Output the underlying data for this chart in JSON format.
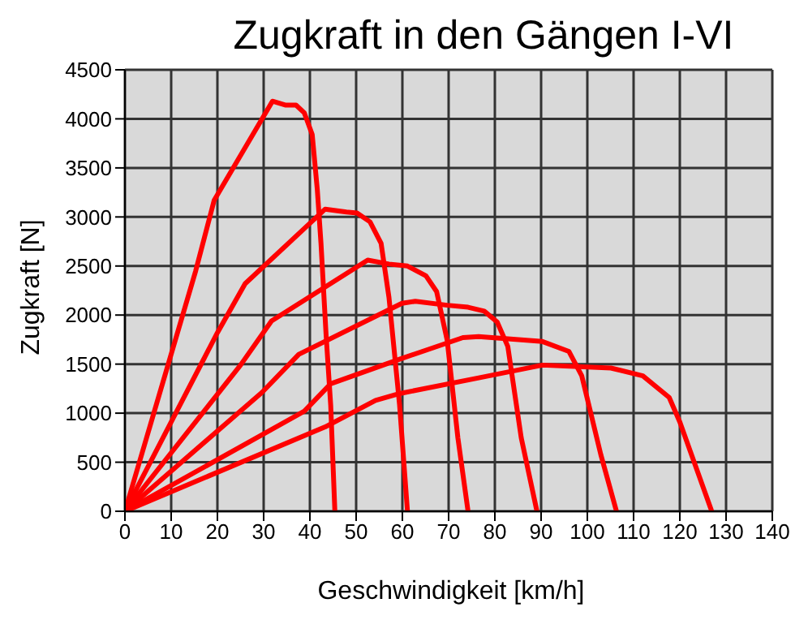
{
  "chart_data": {
    "type": "line",
    "title": "Zugkraft in den Gängen I-VI",
    "xlabel": "Geschwindigkeit [km/h]",
    "ylabel": "Zugkraft [N]",
    "xlim": [
      0,
      140
    ],
    "xticks": [
      0,
      10,
      20,
      30,
      40,
      50,
      60,
      70,
      80,
      90,
      100,
      110,
      120,
      130,
      140
    ],
    "ylim": [
      0,
      4500
    ],
    "yticks": [
      0,
      500,
      1000,
      1500,
      2000,
      2500,
      3000,
      3500,
      4000,
      4500
    ],
    "grid": true,
    "marker": "none",
    "line_style": "solid",
    "series": [
      {
        "color": "#ff0000",
        "x": [
          0,
          15.3,
          19.3,
          31.9,
          34.8,
          37,
          38.8,
          40.5,
          41.6,
          42.4,
          43.5,
          44.5,
          45.4
        ],
        "values": [
          0,
          2450,
          3170,
          4180,
          4140,
          4140,
          4060,
          3840,
          3280,
          2730,
          1800,
          1080,
          0
        ]
      },
      {
        "color": "#ff0000",
        "x": [
          0,
          20,
          26,
          43.3,
          47.9,
          50.2,
          53,
          55.4,
          57.1,
          59.4,
          61.1
        ],
        "values": [
          0,
          1820,
          2320,
          3080,
          3050,
          3040,
          2950,
          2730,
          2180,
          1080,
          0
        ]
      },
      {
        "color": "#ff0000",
        "x": [
          0,
          25,
          31.7,
          52.5,
          57.1,
          61.1,
          65.1,
          67.4,
          69.7,
          72,
          74.2
        ],
        "values": [
          0,
          1490,
          1940,
          2560,
          2520,
          2500,
          2400,
          2240,
          1740,
          750,
          0
        ]
      },
      {
        "color": "#ff0000",
        "x": [
          0,
          29.6,
          37.6,
          59.9,
          62.8,
          69.7,
          74.2,
          77.7,
          80.5,
          82.8,
          85.7,
          89.1
        ],
        "values": [
          0,
          1210,
          1600,
          2120,
          2140,
          2100,
          2080,
          2040,
          1930,
          1680,
          750,
          0
        ]
      },
      {
        "color": "#ff0000",
        "x": [
          0,
          38.8,
          44.5,
          59.4,
          73.1,
          76.5,
          90.3,
          96,
          98.8,
          102.9,
          106.3
        ],
        "values": [
          0,
          1020,
          1300,
          1550,
          1770,
          1780,
          1730,
          1630,
          1380,
          580,
          0
        ]
      },
      {
        "color": "#ff0000",
        "x": [
          0,
          43.3,
          54.2,
          59.4,
          76.5,
          90.3,
          105.1,
          112,
          117.7,
          120,
          126.9
        ],
        "values": [
          0,
          860,
          1130,
          1200,
          1360,
          1490,
          1460,
          1380,
          1160,
          910,
          0
        ]
      }
    ]
  }
}
